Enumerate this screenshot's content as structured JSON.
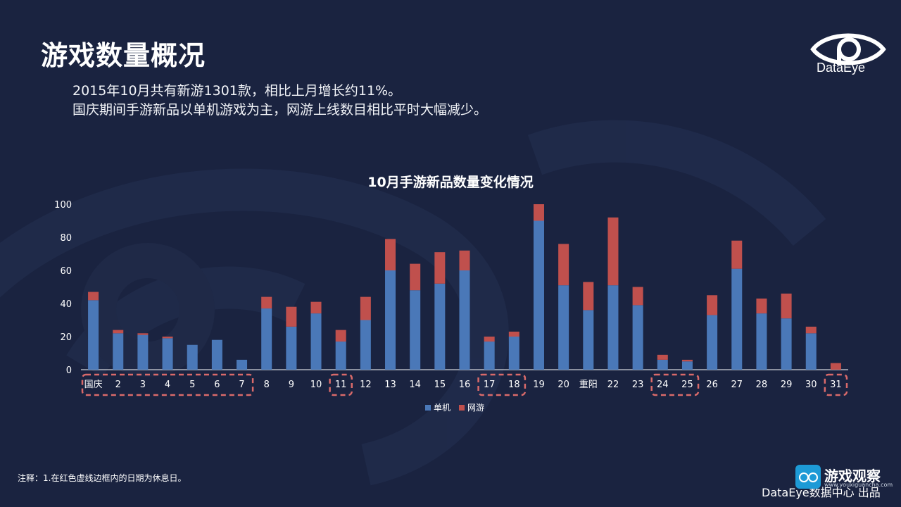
{
  "page": {
    "title": "游戏数量概况",
    "summary_line1": "2015年10月共有新游1301款，相比上月增长约11%。",
    "summary_line2": "国庆期间手游新品以单机游戏为主，网游上线数目相比平时大幅减少。",
    "logo_text": "DataEye",
    "footnote": "注释：1.在红色虚线边框内的日期为休息日。",
    "credit": "DataEye数据中心 出品",
    "watermark_text": "游戏观察",
    "watermark_url": "www.youxiguancha.com"
  },
  "colors": {
    "background": "#1a2340",
    "series_single": "#4a78b8",
    "series_online": "#c0504d",
    "highlight_border": "#d96a6a"
  },
  "icons": [
    "eye-logo-icon",
    "watermark-icon"
  ],
  "chart_data": {
    "type": "bar",
    "stacked": true,
    "title": "10月手游新品数量变化情况",
    "categories": [
      "国庆",
      "2",
      "3",
      "4",
      "5",
      "6",
      "7",
      "8",
      "9",
      "10",
      "11",
      "12",
      "13",
      "14",
      "15",
      "16",
      "17",
      "18",
      "19",
      "20",
      "重阳",
      "22",
      "23",
      "24",
      "25",
      "26",
      "27",
      "28",
      "29",
      "30",
      "31"
    ],
    "series": [
      {
        "name": "单机",
        "values": [
          42,
          22,
          21,
          19,
          15,
          18,
          6,
          37,
          26,
          34,
          17,
          30,
          60,
          48,
          52,
          60,
          17,
          20,
          90,
          51,
          36,
          51,
          39,
          6,
          5,
          33,
          61,
          34,
          31,
          22,
          0
        ]
      },
      {
        "name": "网游",
        "values": [
          5,
          2,
          1,
          1,
          0,
          0,
          0,
          7,
          12,
          7,
          7,
          14,
          19,
          16,
          19,
          12,
          3,
          3,
          10,
          25,
          17,
          41,
          11,
          3,
          1,
          12,
          17,
          9,
          15,
          4,
          4
        ]
      }
    ],
    "ylim": [
      0,
      100
    ],
    "yticks": [
      0,
      20,
      40,
      60,
      80,
      100
    ],
    "legend_position": "bottom",
    "rest_day_groups": [
      [
        "国庆",
        "7"
      ],
      [
        "11",
        "11"
      ],
      [
        "17",
        "18"
      ],
      [
        "24",
        "25"
      ],
      [
        "31",
        "31"
      ]
    ]
  }
}
